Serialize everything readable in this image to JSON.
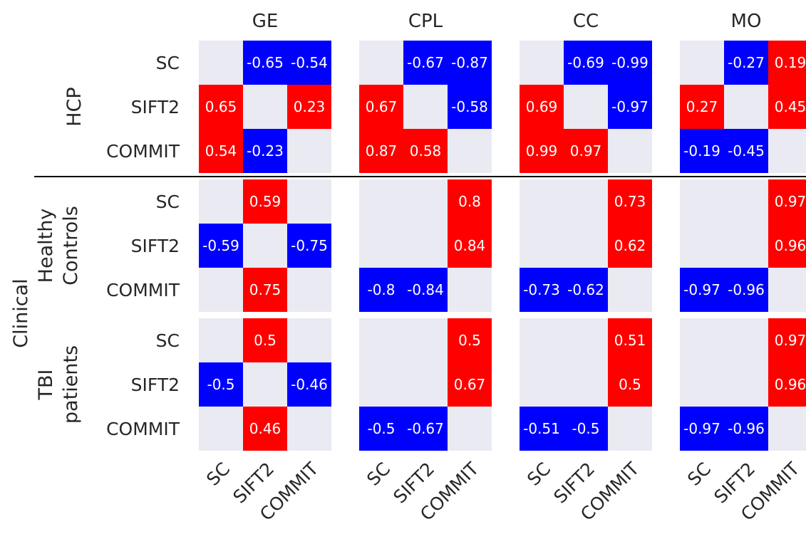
{
  "chart_data": {
    "type": "heatmap",
    "colors": {
      "positive": "#ff0000",
      "negative": "#0000ff",
      "zero": "#eaeaf2",
      "text_on_cell": "#ffffff",
      "label_text": "#262626"
    },
    "metrics": [
      "GE",
      "CPL",
      "CC",
      "MO"
    ],
    "rows": [
      "SC",
      "SIFT2",
      "COMMIT"
    ],
    "cols": [
      "SC",
      "SIFT2",
      "COMMIT"
    ],
    "group_label": "Clinical",
    "datasets": [
      {
        "label": "HCP",
        "label_lines": [
          "HCP"
        ]
      },
      {
        "label": "Healthy Controls",
        "label_lines": [
          "Healthy",
          "Controls"
        ]
      },
      {
        "label": "TBI patients",
        "label_lines": [
          "TBI",
          "patients"
        ]
      }
    ],
    "matrices": [
      [
        [
          [
            null,
            -0.65,
            -0.54
          ],
          [
            0.65,
            null,
            0.23
          ],
          [
            0.54,
            -0.23,
            null
          ]
        ],
        [
          [
            null,
            -0.67,
            -0.87
          ],
          [
            0.67,
            null,
            -0.58
          ],
          [
            0.87,
            0.58,
            null
          ]
        ],
        [
          [
            null,
            -0.69,
            -0.99
          ],
          [
            0.69,
            null,
            -0.97
          ],
          [
            0.99,
            0.97,
            null
          ]
        ],
        [
          [
            null,
            -0.27,
            0.19
          ],
          [
            0.27,
            null,
            0.45
          ],
          [
            -0.19,
            -0.45,
            null
          ]
        ]
      ],
      [
        [
          [
            null,
            0.59,
            null
          ],
          [
            -0.59,
            null,
            -0.75
          ],
          [
            null,
            0.75,
            null
          ]
        ],
        [
          [
            null,
            null,
            0.8
          ],
          [
            null,
            null,
            0.84
          ],
          [
            -0.8,
            -0.84,
            null
          ]
        ],
        [
          [
            null,
            null,
            0.73
          ],
          [
            null,
            null,
            0.62
          ],
          [
            -0.73,
            -0.62,
            null
          ]
        ],
        [
          [
            null,
            null,
            0.97
          ],
          [
            null,
            null,
            0.96
          ],
          [
            -0.97,
            -0.96,
            null
          ]
        ]
      ],
      [
        [
          [
            null,
            0.5,
            null
          ],
          [
            -0.5,
            null,
            -0.46
          ],
          [
            null,
            0.46,
            null
          ]
        ],
        [
          [
            null,
            null,
            0.5
          ],
          [
            null,
            null,
            0.67
          ],
          [
            -0.5,
            -0.67,
            null
          ]
        ],
        [
          [
            null,
            null,
            0.51
          ],
          [
            null,
            null,
            0.5
          ],
          [
            -0.51,
            -0.5,
            null
          ]
        ],
        [
          [
            null,
            null,
            0.97
          ],
          [
            null,
            null,
            0.96
          ],
          [
            -0.97,
            -0.96,
            null
          ]
        ]
      ]
    ]
  }
}
